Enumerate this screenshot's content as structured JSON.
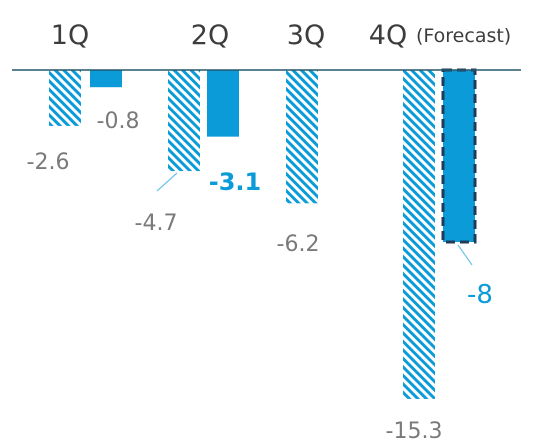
{
  "chart_data": {
    "type": "bar",
    "categories": [
      "1Q",
      "2Q",
      "3Q",
      "4Q"
    ],
    "category_note": "(Forecast)",
    "series": [
      {
        "values": [
          -2.6,
          -4.7,
          -6.2,
          -15.3
        ],
        "style": "hatched",
        "color": "#0b9bd8"
      },
      {
        "values": [
          -0.8,
          -3.1,
          null,
          -8
        ],
        "style": "solid",
        "color": "#0b9bd8"
      }
    ],
    "data_labels": {
      "hatched": [
        "-2.6",
        "-4.7",
        "-6.2",
        "-15.3"
      ],
      "solid": [
        "-0.8",
        "-3.1",
        "",
        "-8"
      ]
    },
    "forecast_bar": {
      "category": "4Q",
      "border": "dashed",
      "border_color": "#1f3b5a"
    },
    "highlighted_label": "-3.1",
    "ylim": [
      -15.3,
      0
    ],
    "grid": false,
    "legend": "none",
    "colors": {
      "bar": "#0b9bd8",
      "axis": "#27586b",
      "label": "#7a7a7a",
      "category": "#3d3d3d"
    }
  }
}
